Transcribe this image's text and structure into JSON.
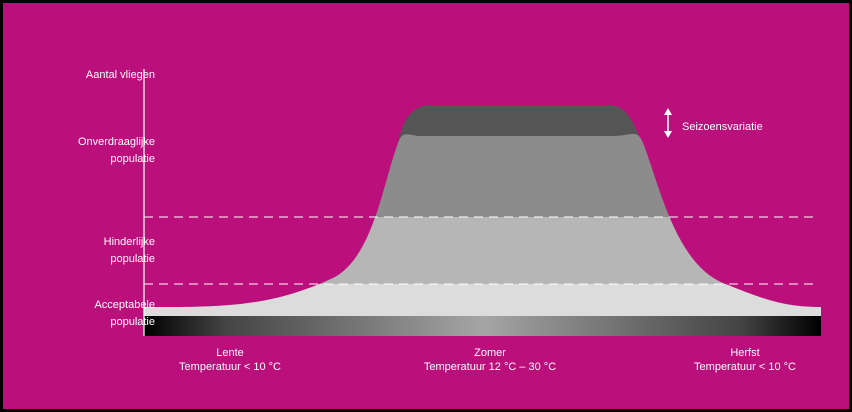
{
  "colors": {
    "background": "#bb0f7b",
    "frame": "#000000",
    "peak_high": "#555555",
    "zone_upper": "#8c8c8c",
    "zone_middle": "#b6b6b6",
    "zone_lower": "#dcdcdc",
    "text": "#ffffff"
  },
  "y_axis": {
    "title": "Aantal vliegen",
    "zones": [
      {
        "line1": "Onverdraaglijke",
        "line2": "populatie"
      },
      {
        "line1": "Hinderlijke",
        "line2": "populatie"
      },
      {
        "line1": "Acceptabele",
        "line2": "populatie"
      }
    ]
  },
  "seasons": [
    {
      "name": "Lente",
      "temperature": "Temperatuur < 10 °C"
    },
    {
      "name": "Zomer",
      "temperature": "Temperatuur 12 °C – 30 °C"
    },
    {
      "name": "Herfst",
      "temperature": "Temperatuur < 10 °C"
    }
  ],
  "annotation": {
    "label": "Seizoensvariatie",
    "icon": "double-arrow-vertical-icon"
  }
}
